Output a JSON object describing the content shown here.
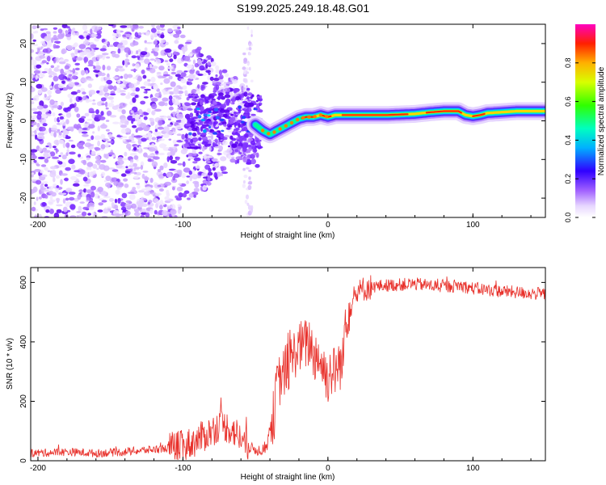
{
  "title": "S199.2025.249.18.48.G01",
  "chart_data": [
    {
      "type": "heatmap",
      "xlabel": "Height of straight line (km)",
      "ylabel": "Frequency (Hz)",
      "xlim": [
        -205,
        150
      ],
      "ylim": [
        -25,
        25
      ],
      "xticks": [
        -200,
        -100,
        0,
        100
      ],
      "xtick_labels": [
        "-200",
        "-100",
        "0",
        "100"
      ],
      "yticks": [
        -20,
        -10,
        0,
        10,
        20
      ],
      "ytick_labels": [
        "-20",
        "-10",
        "0",
        "10",
        "20"
      ],
      "colorbar": {
        "label": "Normalized spectral amplitude",
        "range": [
          0,
          1
        ],
        "ticks": [
          0,
          0.2,
          0.4,
          0.6,
          0.8
        ],
        "tick_labels": [
          "0.0",
          "0.2",
          "0.4",
          "0.6",
          "0.8"
        ]
      },
      "ridge": {
        "x": [
          -50,
          -45,
          -40,
          -35,
          -30,
          -25,
          -20,
          -15,
          -10,
          -5,
          0,
          5,
          10,
          20,
          40,
          60,
          70,
          80,
          90,
          95,
          100,
          105,
          110,
          130,
          150
        ],
        "freq_hz": [
          -1,
          -2.5,
          -3.5,
          -2.5,
          -1.5,
          -0.5,
          0.5,
          1,
          1,
          1.5,
          1,
          1.5,
          1.5,
          1.5,
          1.5,
          1.8,
          2.2,
          2.5,
          2.5,
          1.5,
          1.2,
          1.5,
          2,
          2.5,
          2.5
        ]
      }
    },
    {
      "type": "line",
      "xlabel": "Height of straight line (km)",
      "ylabel": "SNR (10 * v/v)",
      "xlim": [
        -205,
        150
      ],
      "ylim": [
        0,
        650
      ],
      "xticks": [
        -200,
        -100,
        0,
        100
      ],
      "xtick_labels": [
        "-200",
        "-100",
        "0",
        "100"
      ],
      "yticks": [
        0,
        200,
        400,
        600
      ],
      "ytick_labels": [
        "0",
        "200",
        "400",
        "600"
      ],
      "series": [
        {
          "name": "SNR",
          "color": "#e8302a",
          "x": [
            -205,
            -180,
            -160,
            -140,
            -120,
            -110,
            -100,
            -95,
            -90,
            -85,
            -80,
            -75,
            -70,
            -65,
            -60,
            -55,
            -52,
            -50,
            -47,
            -45,
            -42,
            -40,
            -37,
            -35,
            -32,
            -30,
            -27,
            -25,
            -22,
            -20,
            -17,
            -15,
            -12,
            -10,
            -7,
            -5,
            -2,
            0,
            2,
            5,
            8,
            10,
            12,
            15,
            20,
            25,
            30,
            40,
            60,
            80,
            90,
            100,
            120,
            150
          ],
          "values": [
            25,
            30,
            25,
            30,
            38,
            42,
            50,
            58,
            70,
            85,
            100,
            120,
            115,
            100,
            75,
            45,
            40,
            38,
            35,
            40,
            50,
            110,
            160,
            260,
            280,
            300,
            320,
            340,
            370,
            380,
            390,
            390,
            400,
            350,
            360,
            330,
            300,
            280,
            300,
            300,
            330,
            310,
            480,
            520,
            560,
            580,
            585,
            590,
            595,
            585,
            590,
            580,
            570,
            560
          ]
        }
      ]
    }
  ]
}
